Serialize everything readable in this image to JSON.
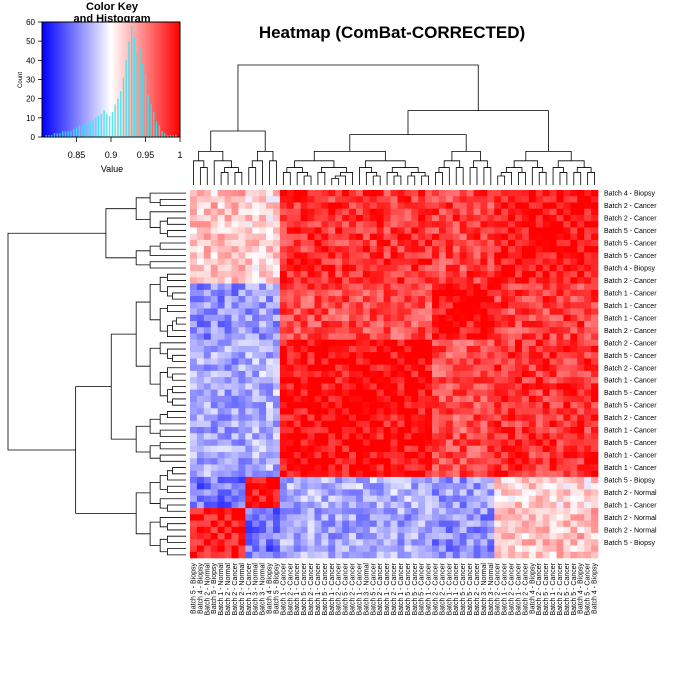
{
  "chart_data": [
    {
      "type": "heatmap",
      "title": "Heatmap (ComBat-CORRECTED)",
      "dendrogram": {
        "rows": true,
        "columns": true
      },
      "colorscale": {
        "low": "#0000ff",
        "mid": "#ffffff",
        "high": "#ff0000"
      },
      "row_labels": [
        "Batch 4 - Biopsy",
        "",
        "Batch 2 - Cancer",
        "",
        "Batch 2 - Cancer",
        "",
        "Batch 5 - Cancer",
        "",
        "Batch 5 - Cancer",
        "",
        "Batch 5 - Cancer",
        "",
        "Batch 4 - Biopsy",
        "",
        "Batch 2 - Cancer",
        "",
        "Batch 1 - Cancer",
        "",
        "Batch 1 - Cancer",
        "",
        "Batch 1 - Cancer",
        "",
        "Batch 2 - Cancer",
        "",
        "Batch 2 - Cancer",
        "",
        "Batch 5 - Cancer",
        "",
        "Batch 2 - Cancer",
        "",
        "Batch 1 - Cancer",
        "",
        "Batch 5 - Cancer",
        "",
        "Batch 5 - Cancer",
        "",
        "Batch 2 - Cancer",
        "",
        "Batch 1 - Cancer",
        "",
        "Batch 5 - Cancer",
        "",
        "Batch 1 - Cancer",
        "",
        "Batch 1 - Cancer",
        "",
        "Batch 5 - Biopsy",
        "",
        "Batch 2 - Normal",
        "",
        "Batch 1 - Cancer",
        "",
        "Batch 2 - Normal",
        "",
        "Batch 2 - Normal",
        "",
        "Batch 5 - Biopsy"
      ],
      "column_labels": [
        "Batch 5 - Biopsy",
        "Batch 4 - Biopsy",
        "Batch 2 - Normal",
        "Batch 5 - Biopsy",
        "Batch 1 - Normal",
        "Batch 2 - Normal",
        "Batch 2 - Cancer",
        "Batch 2 - Normal",
        "Batch 1 - Cancer",
        "Batch 3 - Normal",
        "Batch 3 - Normal",
        "Batch 4 - Biopsy",
        "Batch 5 - Biopsy",
        "Batch 1 - Cancer",
        "Batch 2 - Cancer",
        "Batch 1 - Cancer",
        "Batch 5 - Cancer",
        "Batch 2 - Cancer",
        "Batch 1 - Cancer",
        "Batch 5 - Cancer",
        "Batch 1 - Cancer",
        "Batch 2 - Cancer",
        "Batch 5 - Cancer",
        "Batch 2 - Cancer",
        "Batch 1 - Cancer",
        "Batch 3 - Normal",
        "Batch 5 - Cancer",
        "Batch 2 - Cancer",
        "Batch 1 - Cancer",
        "Batch 2 - Cancer",
        "Batch 1 - Cancer",
        "Batch 5 - Cancer",
        "Batch 5 - Cancer",
        "Batch 5 - Cancer",
        "Batch 1 - Cancer",
        "Batch 2 - Cancer",
        "Batch 2 - Cancer",
        "Batch 1 - Cancer",
        "Batch 1 - Cancer",
        "Batch 5 - Cancer",
        "Batch 5 - Cancer",
        "Batch 2 - Cancer",
        "Batch 3 - Normal",
        "Batch 3 - Normal",
        "Batch 2 - Cancer",
        "Batch 1 - Cancer",
        "Batch 2 - Cancer",
        "Batch 1 - Cancer",
        "Batch 2 - Cancer",
        "Batch 4 - Biopsy",
        "Batch 2 - Cancer",
        "Batch 5 - Cancer",
        "Batch 1 - Cancer",
        "Batch 2 - Cancer",
        "Batch 5 - Cancer",
        "Batch 5 - Cancer",
        "Batch 4 - Biopsy",
        "Batch 5 - Cancer",
        "Batch 4 - Biopsy"
      ]
    },
    {
      "type": "histogram",
      "title": "Color Key\nand Histogram",
      "xlabel": "Value",
      "ylabel": "Count",
      "xlim": [
        0.8,
        1
      ],
      "ylim": [
        0,
        60
      ],
      "xticks": [
        "0.85",
        "0.9",
        "0.95",
        "1"
      ],
      "yticks": [
        "0",
        "10",
        "20",
        "30",
        "40",
        "50",
        "60"
      ],
      "bin_width": 0.002,
      "x": [
        0.802,
        0.806,
        0.81,
        0.814,
        0.818,
        0.822,
        0.826,
        0.83,
        0.834,
        0.838,
        0.842,
        0.846,
        0.85,
        0.854,
        0.858,
        0.862,
        0.866,
        0.87,
        0.874,
        0.878,
        0.882,
        0.886,
        0.89,
        0.894,
        0.898,
        0.902,
        0.906,
        0.91,
        0.914,
        0.918,
        0.922,
        0.926,
        0.93,
        0.934,
        0.938,
        0.942,
        0.946,
        0.95,
        0.954,
        0.958,
        0.962,
        0.966,
        0.97,
        0.974,
        0.978,
        0.982,
        0.986,
        0.99,
        0.994,
        0.998
      ],
      "counts": [
        0,
        1,
        1,
        1,
        2,
        2,
        2,
        3,
        3,
        3,
        3,
        4,
        5,
        6,
        6,
        7,
        7,
        8,
        9,
        10,
        11,
        12,
        14,
        12,
        11,
        13,
        17,
        20,
        24,
        31,
        40,
        50,
        58,
        52,
        44,
        47,
        38,
        33,
        22,
        17,
        13,
        8,
        6,
        3,
        2,
        1,
        1,
        1,
        1,
        0
      ]
    }
  ]
}
